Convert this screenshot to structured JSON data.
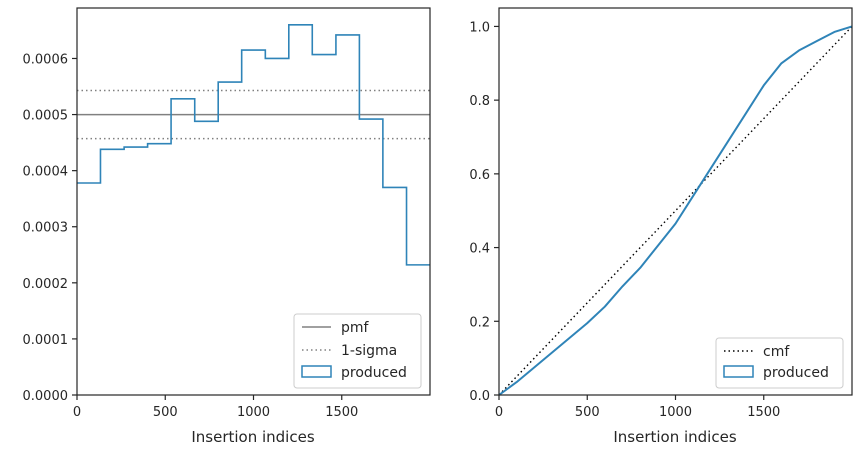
{
  "chart_data": [
    {
      "type": "histogram-step",
      "xlabel": "Insertion indices",
      "ylabel": "",
      "xlim": [
        0,
        2000
      ],
      "ylim": [
        0,
        0.00069
      ],
      "xticks": [
        0,
        500,
        1000,
        1500
      ],
      "xtick_labels": [
        "0",
        "500",
        "1000",
        "1500"
      ],
      "yticks": [
        0,
        0.0001,
        0.0002,
        0.0003,
        0.0004,
        0.0005,
        0.0006
      ],
      "ytick_labels": [
        "0.0000",
        "0.0001",
        "0.0002",
        "0.0003",
        "0.0004",
        "0.0005",
        "0.0006"
      ],
      "grid": false,
      "legend_position": "bottom-right",
      "lines": [
        {
          "name": "pmf",
          "y": 0.0005,
          "color": "#808080",
          "style": "solid"
        },
        {
          "name": "1-sigma",
          "y_values": [
            0.000457,
            0.000543
          ],
          "color": "#808080",
          "style": "dotted"
        }
      ],
      "histogram": {
        "name": "produced",
        "color": "#2f84b8",
        "bin_edges": [
          0,
          133,
          267,
          400,
          533,
          667,
          800,
          933,
          1067,
          1200,
          1333,
          1467,
          1600,
          1733,
          1867,
          2000
        ],
        "values": [
          0.000378,
          0.000438,
          0.000442,
          0.000448,
          0.000528,
          0.000488,
          0.000558,
          0.000615,
          0.0006,
          0.00066,
          0.000607,
          0.000642,
          0.000492,
          0.00037,
          0.000232
        ]
      }
    },
    {
      "type": "line",
      "xlabel": "Insertion indices",
      "ylabel": "",
      "xlim": [
        0,
        2000
      ],
      "ylim": [
        0,
        1.05
      ],
      "xticks": [
        0,
        500,
        1000,
        1500
      ],
      "xtick_labels": [
        "0",
        "500",
        "1000",
        "1500"
      ],
      "yticks": [
        0,
        0.2,
        0.4,
        0.6,
        0.8,
        1.0
      ],
      "ytick_labels": [
        "0.0",
        "0.2",
        "0.4",
        "0.6",
        "0.8",
        "1.0"
      ],
      "grid": false,
      "legend_position": "bottom-right",
      "series": [
        {
          "name": "cmf",
          "color": "#000000",
          "style": "dotted",
          "x": [
            0,
            2000
          ],
          "y": [
            0,
            1.0
          ]
        },
        {
          "name": "produced",
          "color": "#2f84b8",
          "style": "solid",
          "x": [
            0,
            100,
            200,
            300,
            400,
            500,
            600,
            700,
            800,
            900,
            1000,
            1100,
            1200,
            1300,
            1400,
            1500,
            1600,
            1700,
            1800,
            1900,
            2000
          ],
          "y": [
            0,
            0.035,
            0.075,
            0.115,
            0.155,
            0.195,
            0.24,
            0.295,
            0.345,
            0.405,
            0.465,
            0.54,
            0.615,
            0.69,
            0.765,
            0.84,
            0.9,
            0.935,
            0.96,
            0.985,
            1.0
          ]
        }
      ]
    }
  ]
}
